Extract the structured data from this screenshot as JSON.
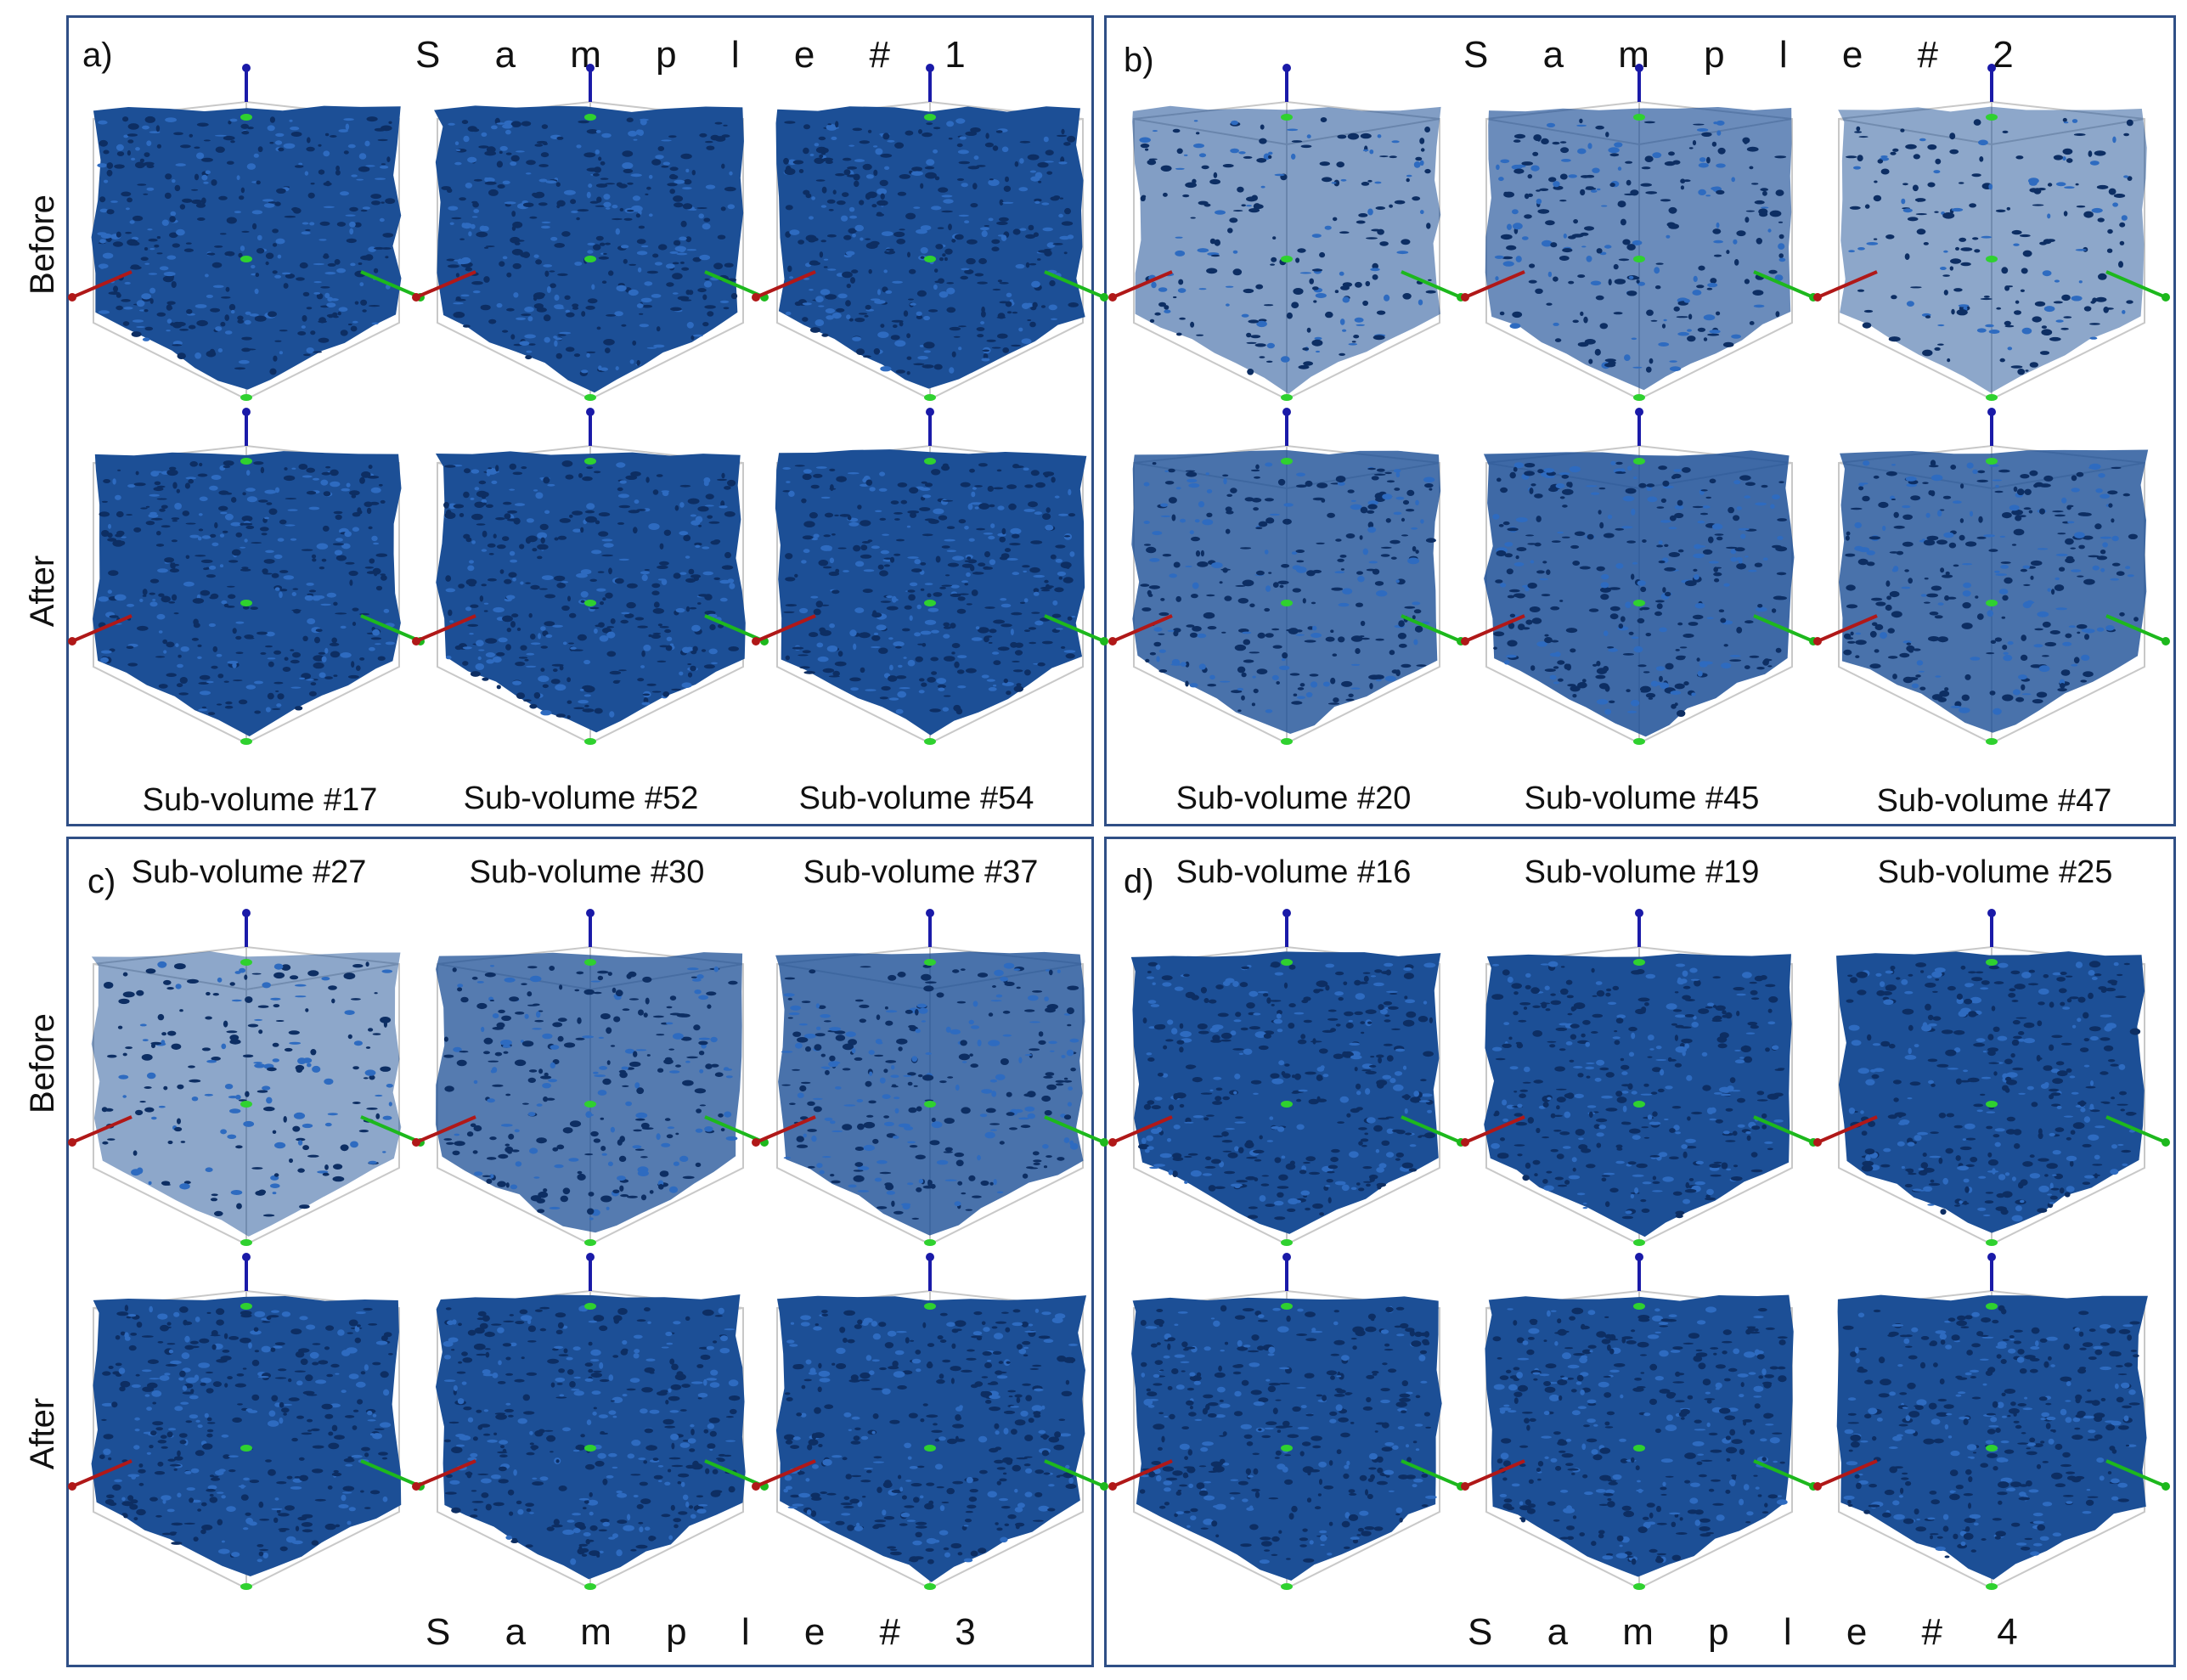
{
  "colors": {
    "panel_border": "#2f4f86",
    "volume_fill": "#1c4f96",
    "volume_dark": "#0d2e63",
    "volume_light": "#2e6bc0",
    "axis_x": "#b01818",
    "axis_y": "#1db81d",
    "axis_z": "#1a1aa8",
    "marker": "#2fd12f",
    "wireframe": "#c8c8c8"
  },
  "panels": [
    {
      "label": "a)",
      "sample_title": "S a m p l e   # 1",
      "row_labels": [
        "Before",
        "After"
      ],
      "sub_volumes": [
        "Sub-volume #17",
        "Sub-volume #52",
        "Sub-volume #54"
      ]
    },
    {
      "label": "b)",
      "sample_title": "S a m p l e   # 2",
      "row_labels": [],
      "sub_volumes": [
        "Sub-volume #20",
        "Sub-volume #45",
        "Sub-volume #47"
      ]
    },
    {
      "label": "c)",
      "sample_title": "S a m p l e   # 3",
      "row_labels": [
        "Before",
        "After"
      ],
      "sub_volumes": [
        "Sub-volume #27",
        "Sub-volume #30",
        "Sub-volume #37"
      ]
    },
    {
      "label": "d)",
      "sample_title": "S a m p l e   # 4",
      "row_labels": [],
      "sub_volumes": [
        "Sub-volume #16",
        "Sub-volume #19",
        "Sub-volume #25"
      ]
    }
  ],
  "volume_icon": "porous-volume-render",
  "axis_icon": "xyz-axis-triad"
}
